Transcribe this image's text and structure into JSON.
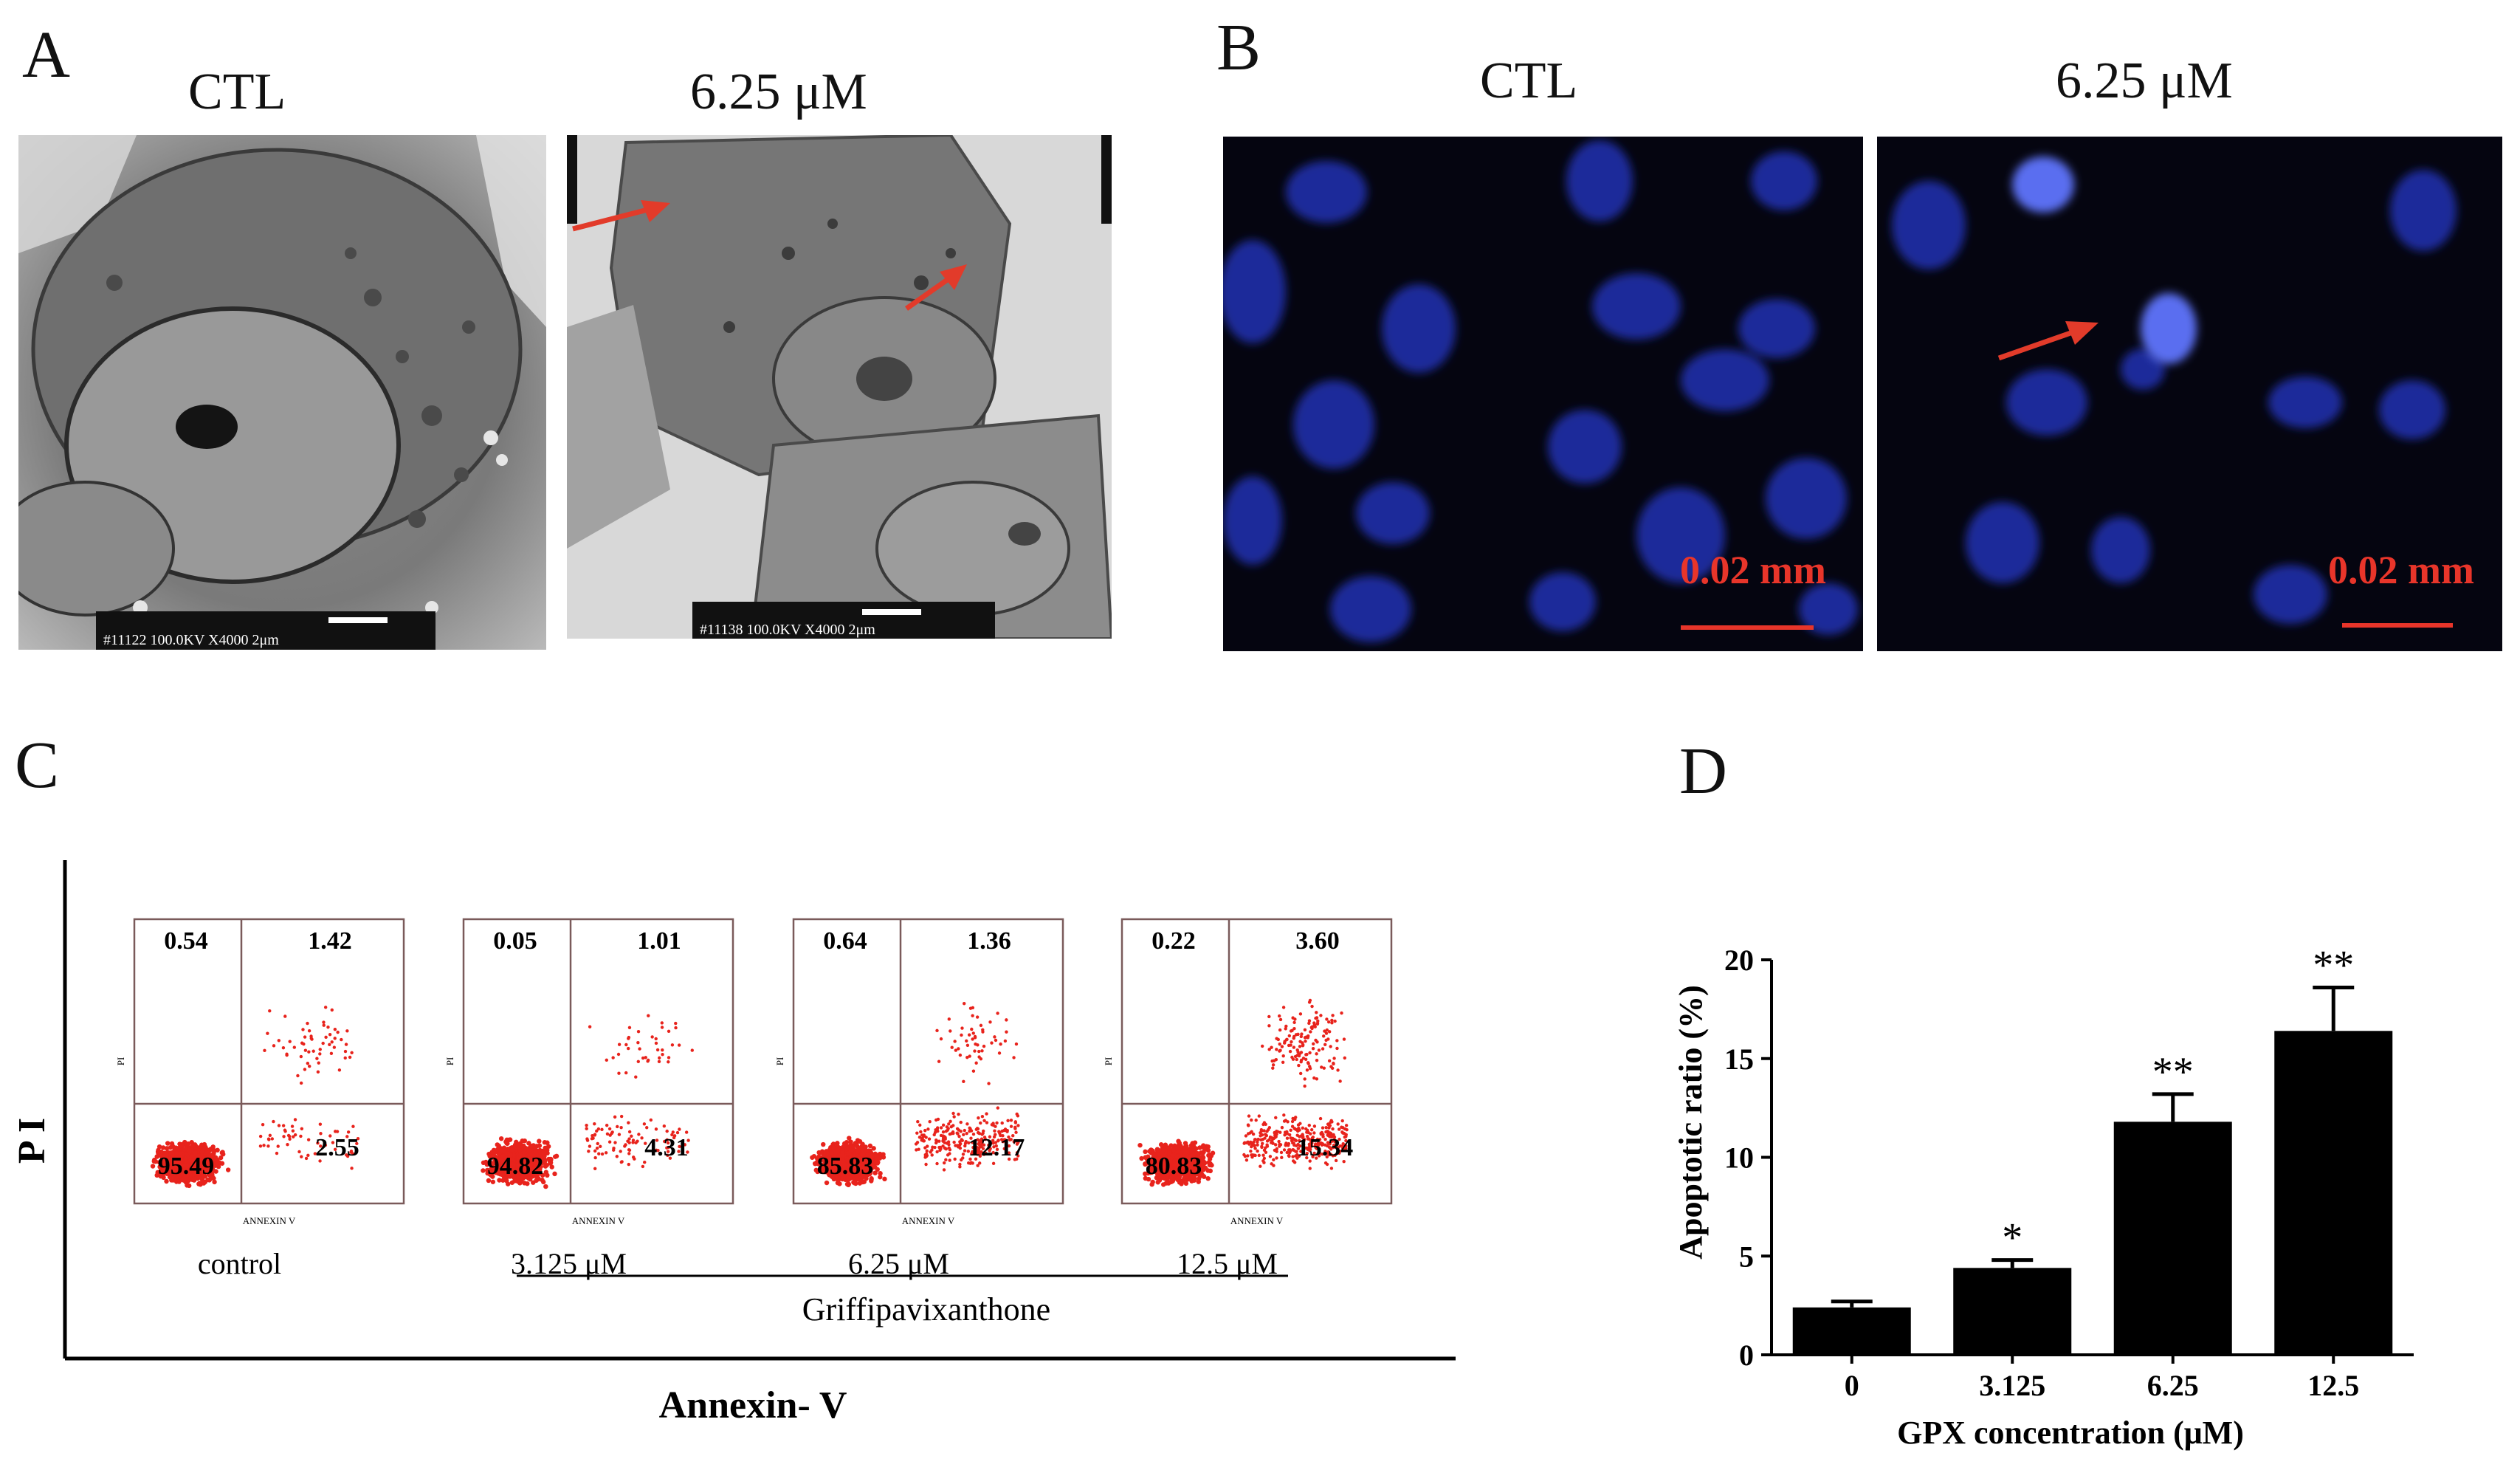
{
  "panel_a": {
    "letter": "A",
    "titles": [
      "CTL",
      "6.25 μM"
    ],
    "micrograph_stamps": [
      "#11122 100.0KV X4000  2μm",
      "#11138 100.0KV X4000  2μm"
    ]
  },
  "panel_b": {
    "letter": "B",
    "titles": [
      "CTL",
      "6.25 μM"
    ],
    "scale_labels": [
      "0.02 mm",
      "0.02 mm"
    ]
  },
  "panel_c": {
    "letter": "C",
    "y_label": "P I",
    "x_label": "Annexin- V",
    "group_label": "Griffipavixanthone",
    "plot_axis_x": "ANNEXIN V",
    "plot_axis_y": "PI",
    "plots": [
      {
        "label": "control",
        "q_ul": "0.54",
        "q_ur": "1.42",
        "q_ll": "95.49",
        "q_lr": "2.55"
      },
      {
        "label": "3.125 μM",
        "q_ul": "0.05",
        "q_ur": "1.01",
        "q_ll": "94.82",
        "q_lr": "4.31"
      },
      {
        "label": "6.25 μM",
        "q_ul": "0.64",
        "q_ur": "1.36",
        "q_ll": "85.83",
        "q_lr": "12.17"
      },
      {
        "label": "12.5 μM",
        "q_ul": "0.22",
        "q_ur": "3.60",
        "q_ll": "80.83",
        "q_lr": "15.34"
      }
    ]
  },
  "panel_d": {
    "letter": "D"
  },
  "chart_data": {
    "type": "bar",
    "categories": [
      "0",
      "3.125",
      "6.25",
      "12.5"
    ],
    "values": [
      2.4,
      4.4,
      11.8,
      16.4
    ],
    "errors": [
      0.3,
      0.4,
      1.4,
      2.2
    ],
    "significance": [
      "",
      "*",
      "**",
      "**"
    ],
    "xlabel": "GPX concentration (μM)",
    "ylabel": "Apoptotic ratio (%)",
    "ylim": [
      0,
      20
    ],
    "yticks": [
      "0",
      "5",
      "10",
      "15",
      "20"
    ],
    "bar_color": "#000000"
  }
}
